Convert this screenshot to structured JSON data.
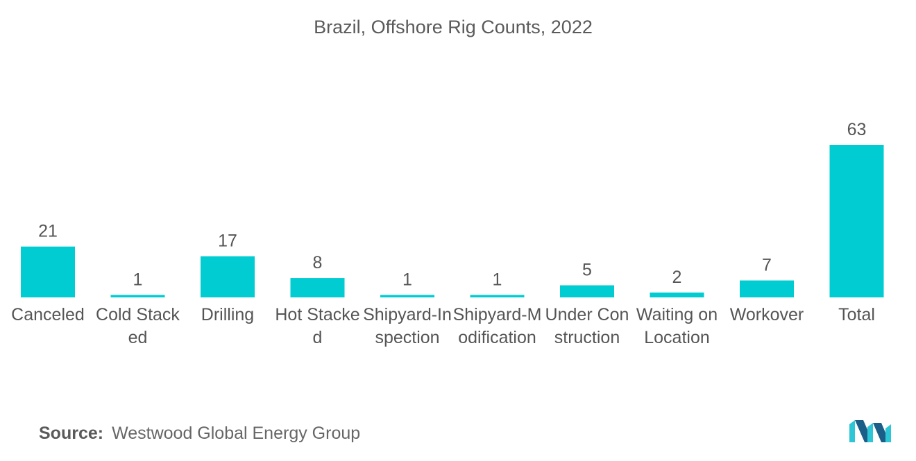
{
  "colors": {
    "bar": "#00CCD1",
    "text": "#555555",
    "logo_dark": "#1B5E87",
    "logo_light": "#2DC6D6"
  },
  "chart_data": {
    "type": "bar",
    "title": "Brazil, Offshore Rig Counts, 2022",
    "xlabel": "",
    "ylabel": "",
    "categories": [
      "Canceled",
      "Cold Stacked",
      "Drilling",
      "Hot Stacked",
      "Shipyard-Inspection",
      "Shipyard-Modification",
      "Under Construction",
      "Waiting on Location",
      "Workover",
      "Total"
    ],
    "values": [
      21,
      1,
      17,
      8,
      1,
      1,
      5,
      2,
      7,
      63
    ],
    "data_labels": [
      "21",
      "1",
      "17",
      "8",
      "1",
      "1",
      "5",
      "2",
      "7",
      "63"
    ],
    "ylim": [
      0,
      63
    ],
    "grid": false,
    "legend": "none"
  },
  "source": {
    "label": "Source:",
    "text": "Westwood Global Energy Group"
  },
  "logo": {
    "icon": "mordor-intelligence-logo-icon"
  }
}
